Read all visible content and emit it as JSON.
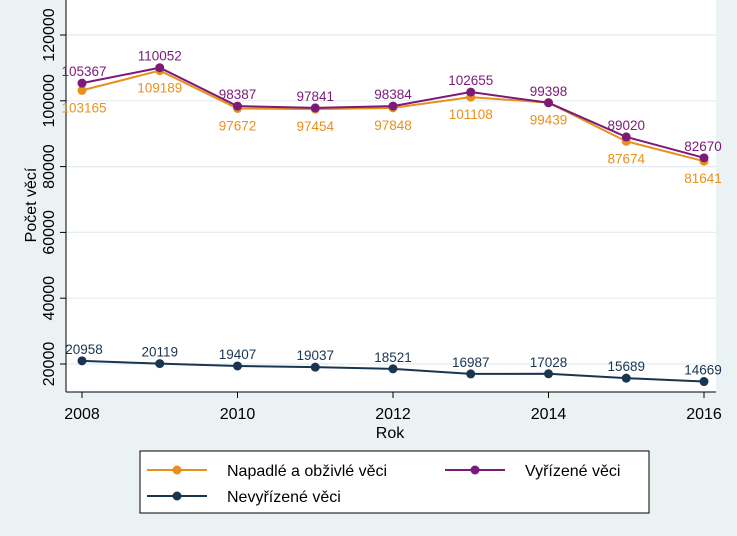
{
  "chart_data": {
    "type": "line",
    "title": "",
    "xlabel": "Rok",
    "ylabel": "Počet věcí",
    "x": [
      2008,
      2009,
      2010,
      2011,
      2012,
      2013,
      2014,
      2015,
      2016
    ],
    "x_ticks": [
      "2008",
      "2010",
      "2012",
      "2014",
      "2016"
    ],
    "y_ticks": [
      "20000",
      "40000",
      "60000",
      "80000",
      "100000",
      "120000"
    ],
    "xlim": [
      2008,
      2016
    ],
    "ylim": [
      10000,
      120000
    ],
    "grid": true,
    "legend_position": "bottom",
    "series": [
      {
        "name": "Napadlé a obživlé věci",
        "color": "#e8901c",
        "values": [
          103165,
          109189,
          97672,
          97454,
          97848,
          101108,
          99439,
          87674,
          81641
        ],
        "labels": [
          "103165",
          "109189",
          "97672",
          "97454",
          "97848",
          "101108",
          "99439",
          "87674",
          "81641"
        ],
        "label_side": "below"
      },
      {
        "name": "Vyřízené věci",
        "color": "#7b1a78",
        "values": [
          105367,
          110052,
          98387,
          97841,
          98384,
          102655,
          99398,
          89020,
          82670
        ],
        "labels": [
          "105367",
          "110052",
          "98387",
          "97841",
          "98384",
          "102655",
          "99398",
          "89020",
          "82670"
        ],
        "label_side": "above"
      },
      {
        "name": "Nevyřízené věci",
        "color": "#1a3550",
        "values": [
          20958,
          20119,
          19407,
          19037,
          18521,
          16987,
          17028,
          15689,
          14669
        ],
        "labels": [
          "20958",
          "20119",
          "19407",
          "19037",
          "18521",
          "16987",
          "17028",
          "15689",
          "14669"
        ],
        "label_side": "above"
      }
    ]
  }
}
